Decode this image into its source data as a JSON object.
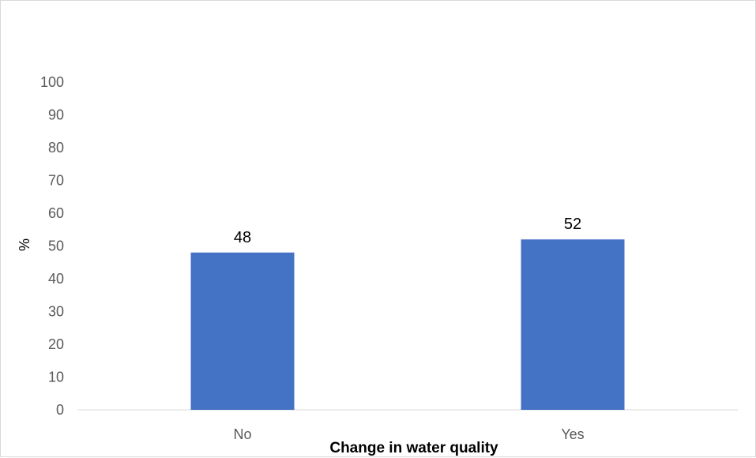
{
  "chart_data": {
    "type": "bar",
    "title": "",
    "xlabel": "Change in water quality",
    "ylabel": "%",
    "categories": [
      "No",
      "Yes"
    ],
    "values": [
      48,
      52
    ],
    "data_labels": [
      "48",
      "52"
    ],
    "ylim": [
      0,
      100
    ],
    "yticks": [
      "0",
      "10",
      "20",
      "30",
      "40",
      "50",
      "60",
      "70",
      "80",
      "90",
      "100"
    ],
    "grid": false,
    "legend": "none",
    "bar_color": "#4472C4"
  }
}
